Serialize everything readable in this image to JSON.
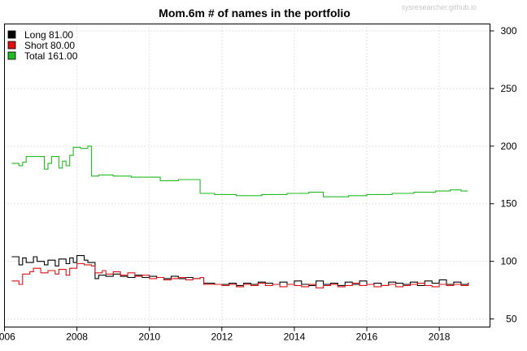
{
  "chart_data": {
    "type": "line",
    "title": "Mom.6m # of names in the portfolio",
    "watermark": "sysresearcher.github.io",
    "xlabel": "",
    "ylabel": "",
    "xlim": [
      2006.0,
      2019.4
    ],
    "ylim": [
      43,
      306
    ],
    "x_ticks": [
      2006,
      2008,
      2010,
      2012,
      2014,
      2016,
      2018
    ],
    "x_tick_labels": [
      "2006",
      "2008",
      "2010",
      "2012",
      "2014",
      "2016",
      "2018"
    ],
    "y_ticks": [
      50,
      100,
      150,
      200,
      250,
      300
    ],
    "y_tick_labels": [
      "50",
      "100",
      "150",
      "200",
      "250",
      "300"
    ],
    "y_axis_side": "right",
    "grid": true,
    "legend_position": "top-left",
    "series": [
      {
        "name": "Long",
        "legend_label": "Long  81.00",
        "color": "#000000",
        "x": [
          2006.2,
          2006.4,
          2006.5,
          2006.6,
          2006.8,
          2006.9,
          2007.1,
          2007.2,
          2007.4,
          2007.5,
          2007.7,
          2007.8,
          2007.9,
          2008.0,
          2008.2,
          2008.3,
          2008.5,
          2008.6,
          2008.8,
          2009.0,
          2009.2,
          2009.4,
          2009.6,
          2009.8,
          2010.0,
          2010.2,
          2010.4,
          2010.6,
          2010.8,
          2011.0,
          2011.2,
          2011.4,
          2011.5,
          2011.8,
          2012.0,
          2012.2,
          2012.4,
          2012.6,
          2012.8,
          2013.0,
          2013.2,
          2013.4,
          2013.6,
          2013.8,
          2014.0,
          2014.2,
          2014.4,
          2014.6,
          2014.8,
          2015.0,
          2015.2,
          2015.4,
          2015.6,
          2015.8,
          2016.0,
          2016.2,
          2016.4,
          2016.6,
          2016.8,
          2017.0,
          2017.2,
          2017.4,
          2017.6,
          2017.8,
          2018.0,
          2018.2,
          2018.4,
          2018.6,
          2018.8
        ],
        "y": [
          104,
          97,
          103,
          99,
          104,
          100,
          97,
          101,
          96,
          102,
          98,
          103,
          99,
          105,
          101,
          99,
          85,
          88,
          87,
          89,
          87,
          86,
          88,
          86,
          87,
          86,
          85,
          87,
          85,
          86,
          85,
          86,
          81,
          80,
          80,
          81,
          79,
          81,
          80,
          82,
          81,
          80,
          82,
          80,
          83,
          80,
          79,
          83,
          80,
          81,
          79,
          82,
          80,
          83,
          80,
          81,
          79,
          82,
          81,
          80,
          82,
          79,
          83,
          81,
          84,
          80,
          82,
          80,
          81
        ]
      },
      {
        "name": "Short",
        "legend_label": "Short  80.00",
        "color": "#dd1111",
        "x": [
          2006.2,
          2006.4,
          2006.5,
          2006.7,
          2006.8,
          2007.0,
          2007.2,
          2007.4,
          2007.5,
          2007.7,
          2007.8,
          2008.0,
          2008.2,
          2008.4,
          2008.5,
          2008.7,
          2008.8,
          2009.0,
          2009.2,
          2009.4,
          2009.6,
          2009.8,
          2010.0,
          2010.2,
          2010.4,
          2010.6,
          2010.8,
          2011.0,
          2011.2,
          2011.4,
          2011.5,
          2011.8,
          2012.0,
          2012.2,
          2012.4,
          2012.6,
          2012.8,
          2013.0,
          2013.2,
          2013.4,
          2013.6,
          2013.8,
          2014.0,
          2014.2,
          2014.4,
          2014.6,
          2014.8,
          2015.0,
          2015.2,
          2015.4,
          2015.6,
          2015.8,
          2016.0,
          2016.2,
          2016.4,
          2016.6,
          2016.8,
          2017.0,
          2017.2,
          2017.4,
          2017.6,
          2017.8,
          2018.0,
          2018.2,
          2018.4,
          2018.6,
          2018.8
        ],
        "y": [
          83,
          80,
          89,
          91,
          94,
          90,
          92,
          89,
          93,
          88,
          94,
          98,
          97,
          96,
          90,
          92,
          89,
          91,
          88,
          90,
          87,
          88,
          85,
          86,
          84,
          85,
          86,
          84,
          85,
          86,
          80,
          80,
          79,
          80,
          78,
          80,
          79,
          81,
          79,
          80,
          78,
          80,
          79,
          78,
          80,
          77,
          79,
          80,
          78,
          79,
          81,
          79,
          80,
          78,
          79,
          80,
          78,
          79,
          80,
          81,
          79,
          78,
          80,
          79,
          80,
          79,
          80
        ]
      },
      {
        "name": "Total",
        "legend_label": "Total 161.00",
        "color": "#22bb22",
        "x": [
          2006.2,
          2006.4,
          2006.5,
          2006.6,
          2007.1,
          2007.2,
          2007.3,
          2007.5,
          2007.6,
          2007.7,
          2007.8,
          2007.9,
          2008.1,
          2008.3,
          2008.4,
          2008.6,
          2009.0,
          2009.5,
          2010.3,
          2010.8,
          2011.4,
          2011.8,
          2012.4,
          2013.1,
          2013.8,
          2014.4,
          2014.8,
          2015.5,
          2016.0,
          2016.7,
          2017.3,
          2017.9,
          2018.3,
          2018.6
        ],
        "y": [
          185,
          183,
          186,
          191,
          180,
          185,
          191,
          181,
          187,
          183,
          192,
          199,
          198,
          200,
          174,
          175,
          174,
          173,
          170,
          171,
          159,
          158,
          157,
          158,
          159,
          160,
          156,
          157,
          158,
          159,
          160,
          161,
          162,
          161
        ]
      }
    ]
  }
}
